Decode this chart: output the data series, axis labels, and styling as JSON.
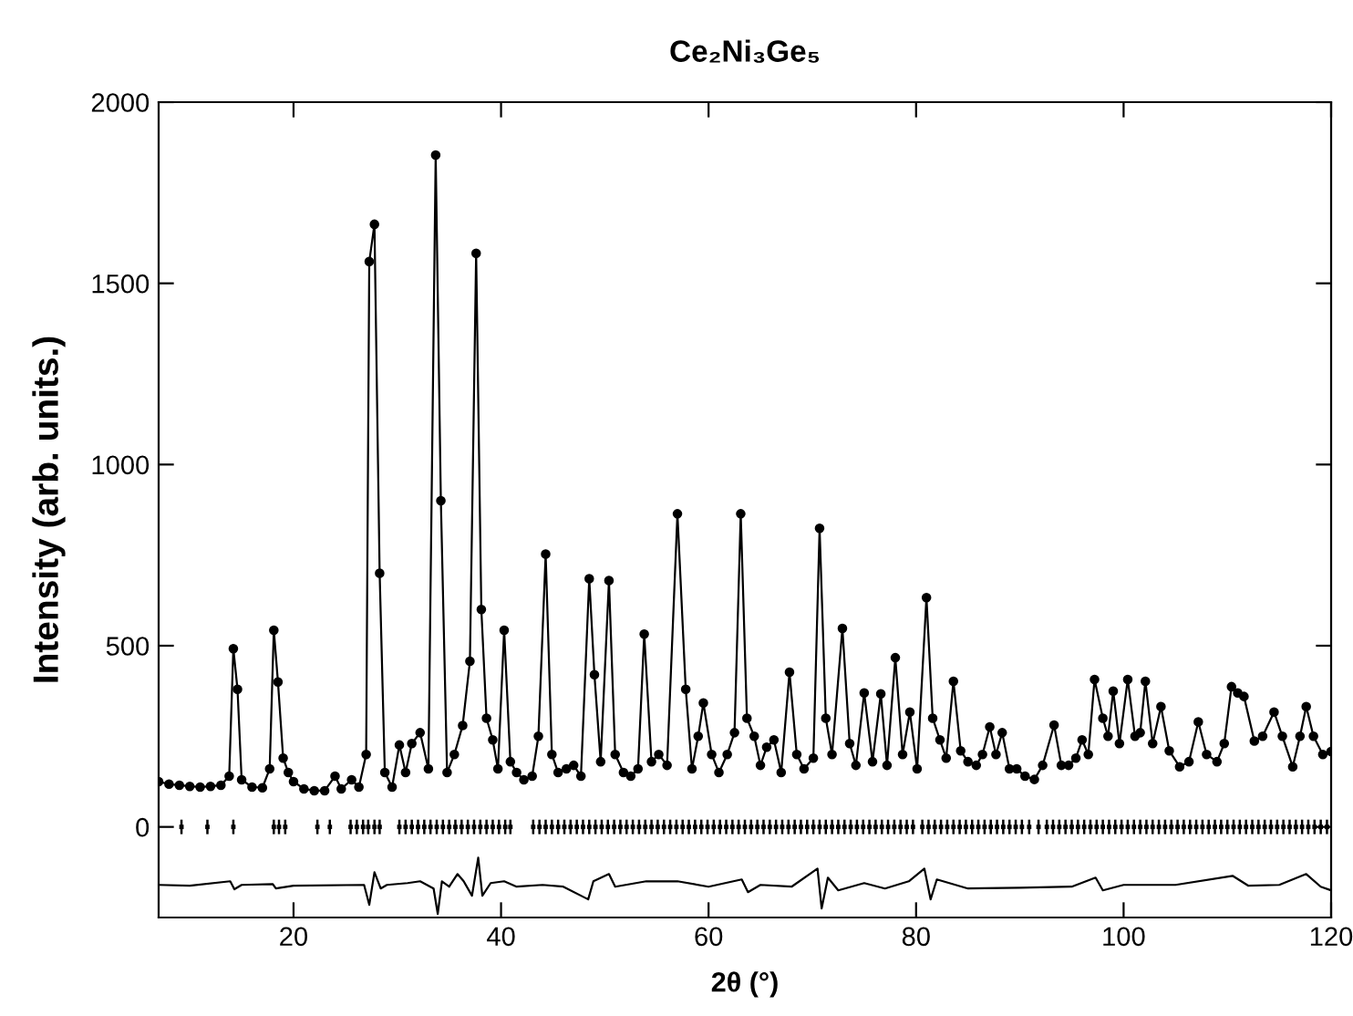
{
  "chart_data": {
    "type": "line",
    "title": "Ce₂Ni₃Ge₅",
    "xlabel": "2θ (°)",
    "ylabel": "Intensity (arb. units.)",
    "xlim": [
      7,
      120
    ],
    "xticks": [
      20,
      40,
      60,
      80,
      100,
      120
    ],
    "ylim": [
      -250,
      2000
    ],
    "yticks": [
      0,
      500,
      1000,
      1500,
      2000
    ],
    "grid": false,
    "legend": false,
    "series": [
      {
        "marker": "circle",
        "color": "#000000",
        "x": [
          7,
          8,
          9,
          10,
          11,
          12,
          13,
          13.8,
          14.2,
          14.6,
          15,
          16,
          17,
          17.7,
          18.1,
          18.5,
          19,
          19.5,
          20,
          21,
          22,
          23,
          24,
          24.6,
          25.6,
          26.3,
          27,
          27.3,
          27.8,
          28.3,
          28.8,
          29.5,
          30.2,
          30.8,
          31.4,
          32.2,
          33,
          33.7,
          34.2,
          34.8,
          35.5,
          36.3,
          37.0,
          37.6,
          38.1,
          38.6,
          39.2,
          39.7,
          40.3,
          40.9,
          41.5,
          42.2,
          43,
          43.6,
          44.3,
          44.9,
          45.5,
          46.3,
          47,
          47.7,
          48.5,
          49.0,
          49.6,
          50.4,
          51,
          51.8,
          52.5,
          53.2,
          53.8,
          54.5,
          55.2,
          56,
          57.0,
          57.8,
          58.4,
          59,
          59.5,
          60.3,
          61,
          61.8,
          62.5,
          63.1,
          63.7,
          64.4,
          65,
          65.6,
          66.3,
          67,
          67.8,
          68.5,
          69.2,
          70.1,
          70.7,
          71.3,
          71.9,
          72.9,
          73.6,
          74.2,
          75.0,
          75.8,
          76.6,
          77.2,
          78.0,
          78.7,
          79.4,
          80.1,
          81.0,
          81.6,
          82.3,
          82.9,
          83.6,
          84.3,
          85,
          85.8,
          86.4,
          87.1,
          87.7,
          88.3,
          89,
          89.7,
          90.5,
          91.4,
          92.2,
          93.3,
          94,
          94.7,
          95.4,
          96.0,
          96.6,
          97.2,
          98.0,
          98.5,
          99.0,
          99.6,
          100.4,
          101.1,
          101.6,
          102.1,
          102.8,
          103.6,
          104.4,
          105.4,
          106.3,
          107.2,
          108,
          109.0,
          109.7,
          110.4,
          111,
          111.6,
          112.6,
          113.4,
          114.5,
          115.3,
          116.3,
          117,
          117.6,
          118.3,
          119.2,
          120
        ],
        "values": [
          125,
          118,
          115,
          112,
          110,
          112,
          115,
          140,
          492,
          380,
          130,
          110,
          108,
          160,
          543,
          400,
          190,
          150,
          125,
          105,
          100,
          100,
          140,
          105,
          130,
          110,
          200,
          1560,
          1663,
          700,
          150,
          110,
          226,
          150,
          230,
          260,
          160,
          1854,
          900,
          150,
          200,
          280,
          457,
          1583,
          600,
          300,
          240,
          160,
          543,
          180,
          150,
          130,
          140,
          250,
          753,
          200,
          150,
          160,
          170,
          140,
          685,
          420,
          180,
          680,
          200,
          150,
          140,
          160,
          532,
          180,
          200,
          170,
          864,
          380,
          160,
          250,
          342,
          200,
          150,
          200,
          260,
          864,
          300,
          250,
          170,
          220,
          240,
          150,
          427,
          200,
          160,
          190,
          824,
          300,
          200,
          548,
          230,
          170,
          370,
          180,
          367,
          170,
          467,
          200,
          317,
          160,
          633,
          300,
          240,
          190,
          402,
          210,
          180,
          170,
          200,
          276,
          200,
          260,
          160,
          160,
          140,
          131,
          170,
          281,
          170,
          170,
          190,
          240,
          200,
          407,
          300,
          250,
          375,
          230,
          407,
          250,
          260,
          402,
          230,
          332,
          210,
          166,
          180,
          290,
          200,
          180,
          230,
          387,
          370,
          360,
          237,
          250,
          317,
          250,
          166,
          250,
          332,
          250,
          200,
          208
        ]
      },
      {
        "type": "scatter",
        "marker": "square",
        "color": "#000000",
        "errors": [
          20,
          20,
          20,
          20,
          20,
          20,
          20,
          20,
          20,
          20,
          20,
          20,
          20,
          20,
          20,
          20,
          20,
          20,
          20,
          20,
          20,
          20,
          20,
          20,
          20,
          20,
          20,
          20,
          20,
          20,
          20,
          20,
          20,
          20,
          20,
          20,
          20,
          20,
          20,
          20,
          20,
          20,
          20,
          20,
          20,
          20,
          20,
          20,
          20,
          20,
          20,
          20,
          20,
          20,
          20,
          20,
          20,
          20,
          20,
          20,
          20,
          20,
          20,
          20,
          20,
          20,
          20,
          20,
          20,
          20,
          20,
          20,
          20,
          20,
          20,
          20,
          20,
          20,
          20,
          20,
          20,
          20,
          20,
          20,
          20,
          20,
          20,
          20,
          20,
          20,
          20,
          20,
          20,
          20,
          20,
          20,
          20,
          20,
          20,
          20,
          20,
          20,
          20,
          20,
          20,
          20,
          20,
          20,
          20,
          20,
          20,
          20,
          20,
          20,
          20,
          20,
          20,
          20,
          20,
          20,
          20,
          20,
          20,
          20,
          20,
          20,
          20,
          20,
          20,
          20,
          20,
          20,
          20,
          20,
          20,
          20,
          20,
          20,
          20,
          20,
          20,
          20,
          20,
          20,
          20,
          20,
          20,
          20,
          20,
          20,
          20,
          20,
          20,
          20,
          20,
          20,
          20,
          20,
          20,
          20
        ],
        "x": [
          9.2,
          11.7,
          14.2,
          18.1,
          18.6,
          19.2,
          22.3,
          23.5,
          25.5,
          26.1,
          26.7,
          27.2,
          27.8,
          28.3,
          30.2,
          30.8,
          31.4,
          32.0,
          32.6,
          33.2,
          33.8,
          34.4,
          35.0,
          35.6,
          36.2,
          36.8,
          37.4,
          38.0,
          38.6,
          39.2,
          39.8,
          40.4,
          40.9,
          43.1,
          43.7,
          44.3,
          44.9,
          45.5,
          46.1,
          46.7,
          47.3,
          47.9,
          48.5,
          49.1,
          49.7,
          50.3,
          50.9,
          51.5,
          52.1,
          52.7,
          53.3,
          53.9,
          54.5,
          55.1,
          55.7,
          56.3,
          56.9,
          57.5,
          58.1,
          58.7,
          59.3,
          59.9,
          60.5,
          61.1,
          61.7,
          62.3,
          62.9,
          63.5,
          64.1,
          64.7,
          65.3,
          65.9,
          66.5,
          67.1,
          67.7,
          68.3,
          68.9,
          69.5,
          70.1,
          70.7,
          71.3,
          71.9,
          72.5,
          73.1,
          73.7,
          74.3,
          74.9,
          75.5,
          76.1,
          76.7,
          77.3,
          77.9,
          78.5,
          79.1,
          79.7,
          80.6,
          81.2,
          81.8,
          82.4,
          83.0,
          83.6,
          84.2,
          84.8,
          85.4,
          86.0,
          86.6,
          87.2,
          87.8,
          88.4,
          89.0,
          89.6,
          90.2,
          90.9,
          91.8,
          92.6,
          93.2,
          93.8,
          94.4,
          95.0,
          95.6,
          96.2,
          96.8,
          97.4,
          98.0,
          98.6,
          99.2,
          99.8,
          100.4,
          101.0,
          101.6,
          102.2,
          102.8,
          103.4,
          104.0,
          104.6,
          105.2,
          105.8,
          106.4,
          107.0,
          107.6,
          108.2,
          108.8,
          109.4,
          110.0,
          110.6,
          111.2,
          111.8,
          112.4,
          113.0,
          113.6,
          114.2,
          114.8,
          115.4,
          116.0,
          116.6,
          117.2,
          117.8,
          118.4,
          119.0,
          119.6
        ],
        "values": [
          0,
          0,
          0,
          0,
          0,
          0,
          0,
          0,
          0,
          0,
          0,
          0,
          0,
          0,
          0,
          0,
          0,
          0,
          0,
          0,
          0,
          0,
          0,
          0,
          0,
          0,
          0,
          0,
          0,
          0,
          0,
          0,
          0,
          0,
          0,
          0,
          0,
          0,
          0,
          0,
          0,
          0,
          0,
          0,
          0,
          0,
          0,
          0,
          0,
          0,
          0,
          0,
          0,
          0,
          0,
          0,
          0,
          0,
          0,
          0,
          0,
          0,
          0,
          0,
          0,
          0,
          0,
          0,
          0,
          0,
          0,
          0,
          0,
          0,
          0,
          0,
          0,
          0,
          0,
          0,
          0,
          0,
          0,
          0,
          0,
          0,
          0,
          0,
          0,
          0,
          0,
          0,
          0,
          0,
          0,
          0,
          0,
          0,
          0,
          0,
          0,
          0,
          0,
          0,
          0,
          0,
          0,
          0,
          0,
          0,
          0,
          0,
          0,
          0,
          0,
          0,
          0,
          0,
          0,
          0,
          0,
          0,
          0,
          0,
          0,
          0,
          0,
          0,
          0,
          0,
          0,
          0,
          0,
          0,
          0,
          0,
          0,
          0,
          0,
          0,
          0,
          0,
          0,
          0,
          0,
          0,
          0,
          0,
          0,
          0,
          0,
          0,
          0,
          0,
          0,
          0,
          0,
          0,
          0,
          0
        ]
      },
      {
        "type": "line",
        "marker": "none",
        "color": "#000000",
        "x": [
          7,
          10,
          13.9,
          14.3,
          15,
          18,
          18.3,
          20,
          26.8,
          27.3,
          27.8,
          28.4,
          29,
          31,
          32.2,
          33.5,
          33.9,
          34.3,
          35,
          35.8,
          36.4,
          37.2,
          37.8,
          38.2,
          39,
          40.3,
          41.5,
          44,
          46,
          48.4,
          48.9,
          50.4,
          51,
          54,
          57,
          60,
          63.2,
          63.8,
          65,
          68,
          70.5,
          70.9,
          71.5,
          72.5,
          75,
          77,
          79.3,
          80.8,
          81.4,
          82,
          85,
          90,
          95,
          97.3,
          98,
          100,
          105,
          110.5,
          112,
          115,
          117.6,
          119,
          120
        ],
        "values": [
          -160,
          -162,
          -150,
          -172,
          -160,
          -158,
          -170,
          -162,
          -160,
          -215,
          -125,
          -170,
          -160,
          -155,
          -150,
          -170,
          -240,
          -150,
          -165,
          -130,
          -150,
          -190,
          -85,
          -190,
          -155,
          -150,
          -165,
          -160,
          -165,
          -200,
          -150,
          -130,
          -165,
          -150,
          -150,
          -165,
          -145,
          -180,
          -160,
          -165,
          -115,
          -225,
          -140,
          -175,
          -155,
          -170,
          -150,
          -115,
          -200,
          -145,
          -170,
          -168,
          -165,
          -140,
          -175,
          -160,
          -160,
          -135,
          -162,
          -160,
          -130,
          -165,
          -175
        ]
      }
    ]
  }
}
